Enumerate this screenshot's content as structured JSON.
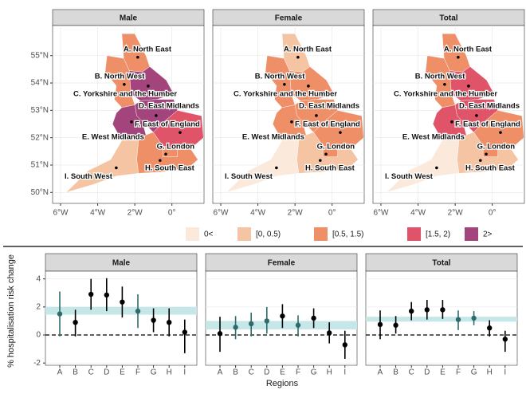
{
  "chart_data": [
    {
      "type": "choropleth",
      "regions": [
        "A. North East",
        "B. North West",
        "C. Yorkshire and the Humber",
        "D. East Midlands",
        "E. West Midlands",
        "F. East of England",
        "G. London",
        "H. South East",
        "I. South West"
      ],
      "legend": {
        "labels": [
          "0<",
          "[0, 0.5)",
          "[0.5, 1.5)",
          "[1.5, 2)",
          "2>"
        ],
        "colors": [
          "#fbeadb",
          "#f5c4a2",
          "#ef8f68",
          "#df5468",
          "#a3457c"
        ]
      },
      "xlim": [
        -6.43,
        1.73
      ],
      "ylim": [
        49.6,
        56.1
      ],
      "xticks": [
        {
          "value": -6,
          "label": "6°W"
        },
        {
          "value": -4,
          "label": "4°W"
        },
        {
          "value": -2,
          "label": "2°W"
        },
        {
          "value": 0,
          "label": "0°"
        }
      ],
      "yticks": [
        {
          "value": 50,
          "label": "50°N"
        },
        {
          "value": 51,
          "label": "51°N"
        },
        {
          "value": 52,
          "label": "52°N"
        },
        {
          "value": 53,
          "label": "53°N"
        },
        {
          "value": 54,
          "label": "54°N"
        },
        {
          "value": 55,
          "label": "55°N"
        }
      ],
      "panels": [
        {
          "title": "Male",
          "classes": [
            2,
            2,
            4,
            4,
            4,
            3,
            2,
            2,
            1
          ]
        },
        {
          "title": "Female",
          "classes": [
            1,
            2,
            2,
            2,
            2,
            2,
            2,
            1,
            0
          ]
        },
        {
          "title": "Total",
          "classes": [
            2,
            2,
            3,
            3,
            3,
            2,
            2,
            1,
            0
          ]
        }
      ]
    },
    {
      "type": "errorbar",
      "categories": [
        "A",
        "B",
        "C",
        "D",
        "E",
        "F",
        "G",
        "H",
        "I"
      ],
      "xlabel": "Regions",
      "ylabel": "% hospitalisation risk change",
      "ylim": [
        -2.16,
        4.55
      ],
      "yticks": [
        -2,
        0,
        2,
        4
      ],
      "color": "#000000",
      "highlight_color": "#2f6b6b",
      "band_color": "#c6e7e7",
      "panels": [
        {
          "title": "Male",
          "values": [
            1.5,
            0.9,
            2.9,
            2.85,
            2.35,
            1.7,
            1.05,
            0.9,
            0.2
          ],
          "lower": [
            -0.1,
            -0.1,
            1.8,
            1.7,
            1.25,
            0.5,
            0.2,
            -0.1,
            -1.3
          ],
          "upper": [
            3.1,
            1.8,
            4.0,
            4.05,
            3.45,
            2.9,
            1.9,
            1.9,
            1.1
          ],
          "band": [
            1.45,
            2.0
          ]
        },
        {
          "title": "Female",
          "values": [
            0.1,
            0.55,
            0.8,
            1.0,
            1.35,
            0.7,
            1.2,
            0.15,
            -0.7
          ],
          "lower": [
            -1.2,
            -0.3,
            -0.1,
            0.1,
            0.5,
            -0.1,
            0.5,
            -0.6,
            -1.7
          ],
          "upper": [
            1.3,
            1.35,
            1.6,
            2.0,
            2.2,
            1.4,
            1.9,
            0.9,
            0.3
          ],
          "band": [
            0.4,
            1.0
          ]
        },
        {
          "title": "Total",
          "values": [
            0.75,
            0.7,
            1.7,
            1.8,
            1.8,
            1.1,
            1.2,
            0.5,
            -0.3
          ],
          "lower": [
            -0.3,
            0.1,
            1.05,
            1.1,
            1.15,
            0.35,
            0.7,
            -0.1,
            -1.2
          ],
          "upper": [
            1.75,
            1.35,
            2.35,
            2.5,
            2.5,
            1.75,
            1.7,
            1.05,
            0.3
          ],
          "band": [
            0.95,
            1.3
          ]
        }
      ]
    }
  ]
}
